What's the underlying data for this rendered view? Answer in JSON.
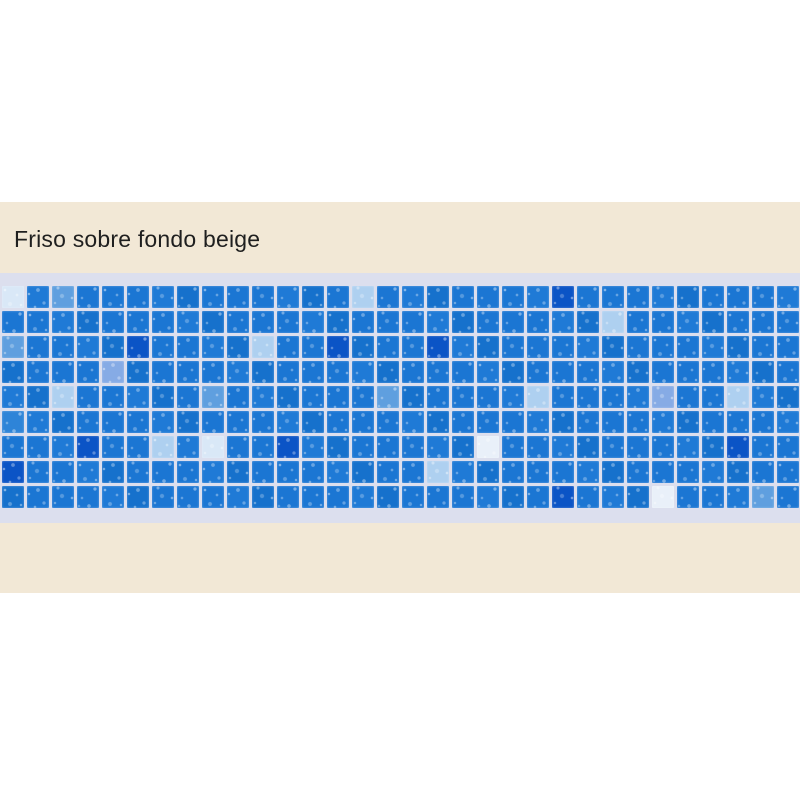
{
  "page": {
    "background_color": "#ffffff"
  },
  "banner": {
    "title": "Friso sobre fondo beige",
    "background_color": "#f2e8d6",
    "text_color": "#1f1f1f"
  },
  "mosaic": {
    "grout_color": "#dcdfee",
    "rows": 9,
    "cols": 32,
    "tile_colors": {
      "base": "#1b76d3",
      "base2": "#1f7ad6",
      "base3": "#1671cc",
      "medium": "#2e84d8",
      "dark": "#0b54c6",
      "sky": "#5f9fdf",
      "periwinkle": "#86abe5",
      "pale": "#aed0f0",
      "very_pale": "#d9e8f7",
      "near_white": "#e9f0f9"
    },
    "base_shade_cycle": [
      "base",
      "base",
      "base2",
      "base",
      "base3"
    ],
    "special_tiles": [
      {
        "row": 0,
        "col": 0,
        "color": "very_pale"
      },
      {
        "row": 0,
        "col": 2,
        "color": "sky"
      },
      {
        "row": 0,
        "col": 14,
        "color": "pale"
      },
      {
        "row": 0,
        "col": 22,
        "color": "dark"
      },
      {
        "row": 1,
        "col": 24,
        "color": "pale"
      },
      {
        "row": 2,
        "col": 0,
        "color": "sky"
      },
      {
        "row": 2,
        "col": 5,
        "color": "dark"
      },
      {
        "row": 2,
        "col": 10,
        "color": "pale"
      },
      {
        "row": 2,
        "col": 13,
        "color": "dark"
      },
      {
        "row": 2,
        "col": 17,
        "color": "dark"
      },
      {
        "row": 3,
        "col": 4,
        "color": "periwinkle"
      },
      {
        "row": 4,
        "col": 2,
        "color": "pale"
      },
      {
        "row": 4,
        "col": 8,
        "color": "sky"
      },
      {
        "row": 4,
        "col": 15,
        "color": "sky"
      },
      {
        "row": 4,
        "col": 21,
        "color": "pale"
      },
      {
        "row": 4,
        "col": 26,
        "color": "periwinkle"
      },
      {
        "row": 4,
        "col": 29,
        "color": "pale"
      },
      {
        "row": 5,
        "col": 0,
        "color": "medium"
      },
      {
        "row": 6,
        "col": 3,
        "color": "dark"
      },
      {
        "row": 6,
        "col": 6,
        "color": "pale"
      },
      {
        "row": 6,
        "col": 8,
        "color": "very_pale"
      },
      {
        "row": 6,
        "col": 11,
        "color": "dark"
      },
      {
        "row": 6,
        "col": 19,
        "color": "near_white"
      },
      {
        "row": 6,
        "col": 29,
        "color": "dark"
      },
      {
        "row": 7,
        "col": 0,
        "color": "dark"
      },
      {
        "row": 7,
        "col": 17,
        "color": "pale"
      },
      {
        "row": 8,
        "col": 22,
        "color": "dark"
      },
      {
        "row": 8,
        "col": 26,
        "color": "near_white"
      },
      {
        "row": 8,
        "col": 30,
        "color": "sky"
      }
    ]
  }
}
